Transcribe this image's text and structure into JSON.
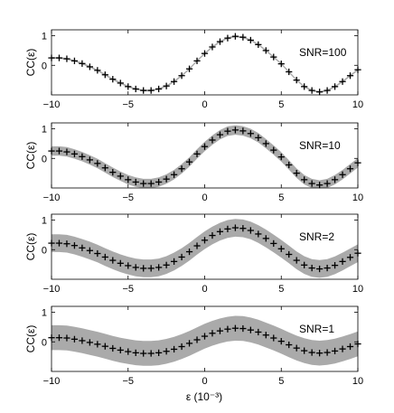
{
  "chart_data": [
    {
      "type": "scatter",
      "annotation": "SNR=100",
      "ylabel": "CC(ε)",
      "xlim": [
        -10,
        10
      ],
      "ylim": [
        -1,
        1.2
      ],
      "xticks": [
        -10,
        -5,
        0,
        5,
        10
      ],
      "xtick_labels": [
        "−10",
        "−5",
        "0",
        "5",
        "10"
      ],
      "yticks": [
        0,
        1
      ],
      "ytick_labels": [
        "0",
        "1"
      ],
      "band_halfwidth": 0.03,
      "x": [
        -10,
        -9.5,
        -9,
        -8.5,
        -8,
        -7.5,
        -7,
        -6.5,
        -6,
        -5.5,
        -5,
        -4.5,
        -4,
        -3.5,
        -3,
        -2.5,
        -2,
        -1.5,
        -1,
        -0.5,
        0,
        0.5,
        1,
        1.5,
        2,
        2.5,
        3,
        3.5,
        4,
        4.5,
        5,
        5.5,
        6,
        6.5,
        7,
        7.5,
        8,
        8.5,
        9,
        9.5,
        10
      ],
      "y": [
        0.25,
        0.25,
        0.22,
        0.15,
        0.06,
        -0.05,
        -0.17,
        -0.32,
        -0.47,
        -0.6,
        -0.72,
        -0.8,
        -0.85,
        -0.85,
        -0.8,
        -0.7,
        -0.55,
        -0.35,
        -0.12,
        0.15,
        0.4,
        0.62,
        0.8,
        0.92,
        0.98,
        0.95,
        0.85,
        0.7,
        0.5,
        0.28,
        0.05,
        -0.22,
        -0.5,
        -0.72,
        -0.85,
        -0.9,
        -0.85,
        -0.72,
        -0.55,
        -0.35,
        -0.15
      ]
    },
    {
      "type": "scatter",
      "annotation": "SNR=10",
      "ylabel": "CC(ε)",
      "xlim": [
        -10,
        10
      ],
      "ylim": [
        -1,
        1.2
      ],
      "xticks": [
        -10,
        -5,
        0,
        5,
        10
      ],
      "xtick_labels": [
        "−10",
        "−5",
        "0",
        "5",
        "10"
      ],
      "yticks": [
        0,
        1
      ],
      "ytick_labels": [
        "0",
        "1"
      ],
      "band_halfwidth": 0.16,
      "x": [
        -10,
        -9.5,
        -9,
        -8.5,
        -8,
        -7.5,
        -7,
        -6.5,
        -6,
        -5.5,
        -5,
        -4.5,
        -4,
        -3.5,
        -3,
        -2.5,
        -2,
        -1.5,
        -1,
        -0.5,
        0,
        0.5,
        1,
        1.5,
        2,
        2.5,
        3,
        3.5,
        4,
        4.5,
        5,
        5.5,
        6,
        6.5,
        7,
        7.5,
        8,
        8.5,
        9,
        9.5,
        10
      ],
      "y": [
        0.25,
        0.25,
        0.22,
        0.15,
        0.06,
        -0.05,
        -0.17,
        -0.32,
        -0.47,
        -0.6,
        -0.72,
        -0.8,
        -0.85,
        -0.85,
        -0.8,
        -0.7,
        -0.55,
        -0.35,
        -0.12,
        0.15,
        0.4,
        0.62,
        0.8,
        0.92,
        0.96,
        0.93,
        0.84,
        0.7,
        0.5,
        0.28,
        0.05,
        -0.22,
        -0.5,
        -0.72,
        -0.85,
        -0.9,
        -0.85,
        -0.72,
        -0.55,
        -0.35,
        -0.15
      ]
    },
    {
      "type": "scatter",
      "annotation": "SNR=2",
      "ylabel": "CC(ε)",
      "xlim": [
        -10,
        10
      ],
      "ylim": [
        -1,
        1.2
      ],
      "xticks": [
        -10,
        -5,
        0,
        5,
        10
      ],
      "xtick_labels": [
        "−10",
        "−5",
        "0",
        "5",
        "10"
      ],
      "yticks": [
        0,
        1
      ],
      "ytick_labels": [
        "0",
        "1"
      ],
      "band_halfwidth": 0.3,
      "x": [
        -10,
        -9.5,
        -9,
        -8.5,
        -8,
        -7.5,
        -7,
        -6.5,
        -6,
        -5.5,
        -5,
        -4.5,
        -4,
        -3.5,
        -3,
        -2.5,
        -2,
        -1.5,
        -1,
        -0.5,
        0,
        0.5,
        1,
        1.5,
        2,
        2.5,
        3,
        3.5,
        4,
        4.5,
        5,
        5.5,
        6,
        6.5,
        7,
        7.5,
        8,
        8.5,
        9,
        9.5,
        10
      ],
      "y": [
        0.22,
        0.22,
        0.2,
        0.14,
        0.06,
        -0.03,
        -0.13,
        -0.25,
        -0.36,
        -0.46,
        -0.54,
        -0.6,
        -0.63,
        -0.63,
        -0.6,
        -0.52,
        -0.4,
        -0.25,
        -0.07,
        0.13,
        0.32,
        0.48,
        0.61,
        0.7,
        0.74,
        0.72,
        0.65,
        0.53,
        0.38,
        0.21,
        0.03,
        -0.16,
        -0.36,
        -0.52,
        -0.62,
        -0.65,
        -0.62,
        -0.53,
        -0.4,
        -0.26,
        -0.12
      ]
    },
    {
      "type": "scatter",
      "annotation": "SNR=1",
      "ylabel": "CC(ε)",
      "xlabel": "ε (10⁻³)",
      "xlim": [
        -10,
        10
      ],
      "ylim": [
        -1,
        1.2
      ],
      "xticks": [
        -10,
        -5,
        0,
        5,
        10
      ],
      "xtick_labels": [
        "−10",
        "−5",
        "0",
        "5",
        "10"
      ],
      "yticks": [
        0,
        1
      ],
      "ytick_labels": [
        "0",
        "1"
      ],
      "band_halfwidth": 0.42,
      "x": [
        -10,
        -9.5,
        -9,
        -8.5,
        -8,
        -7.5,
        -7,
        -6.5,
        -6,
        -5.5,
        -5,
        -4.5,
        -4,
        -3.5,
        -3,
        -2.5,
        -2,
        -1.5,
        -1,
        -0.5,
        0,
        0.5,
        1,
        1.5,
        2,
        2.5,
        3,
        3.5,
        4,
        4.5,
        5,
        5.5,
        6,
        6.5,
        7,
        7.5,
        8,
        8.5,
        9,
        9.5,
        10
      ],
      "y": [
        0.14,
        0.14,
        0.13,
        0.09,
        0.04,
        -0.02,
        -0.08,
        -0.15,
        -0.22,
        -0.28,
        -0.33,
        -0.37,
        -0.39,
        -0.39,
        -0.37,
        -0.32,
        -0.25,
        -0.16,
        -0.05,
        0.07,
        0.19,
        0.29,
        0.37,
        0.43,
        0.46,
        0.45,
        0.4,
        0.33,
        0.23,
        0.13,
        0.02,
        -0.1,
        -0.21,
        -0.3,
        -0.36,
        -0.38,
        -0.36,
        -0.31,
        -0.24,
        -0.16,
        -0.07
      ]
    }
  ]
}
